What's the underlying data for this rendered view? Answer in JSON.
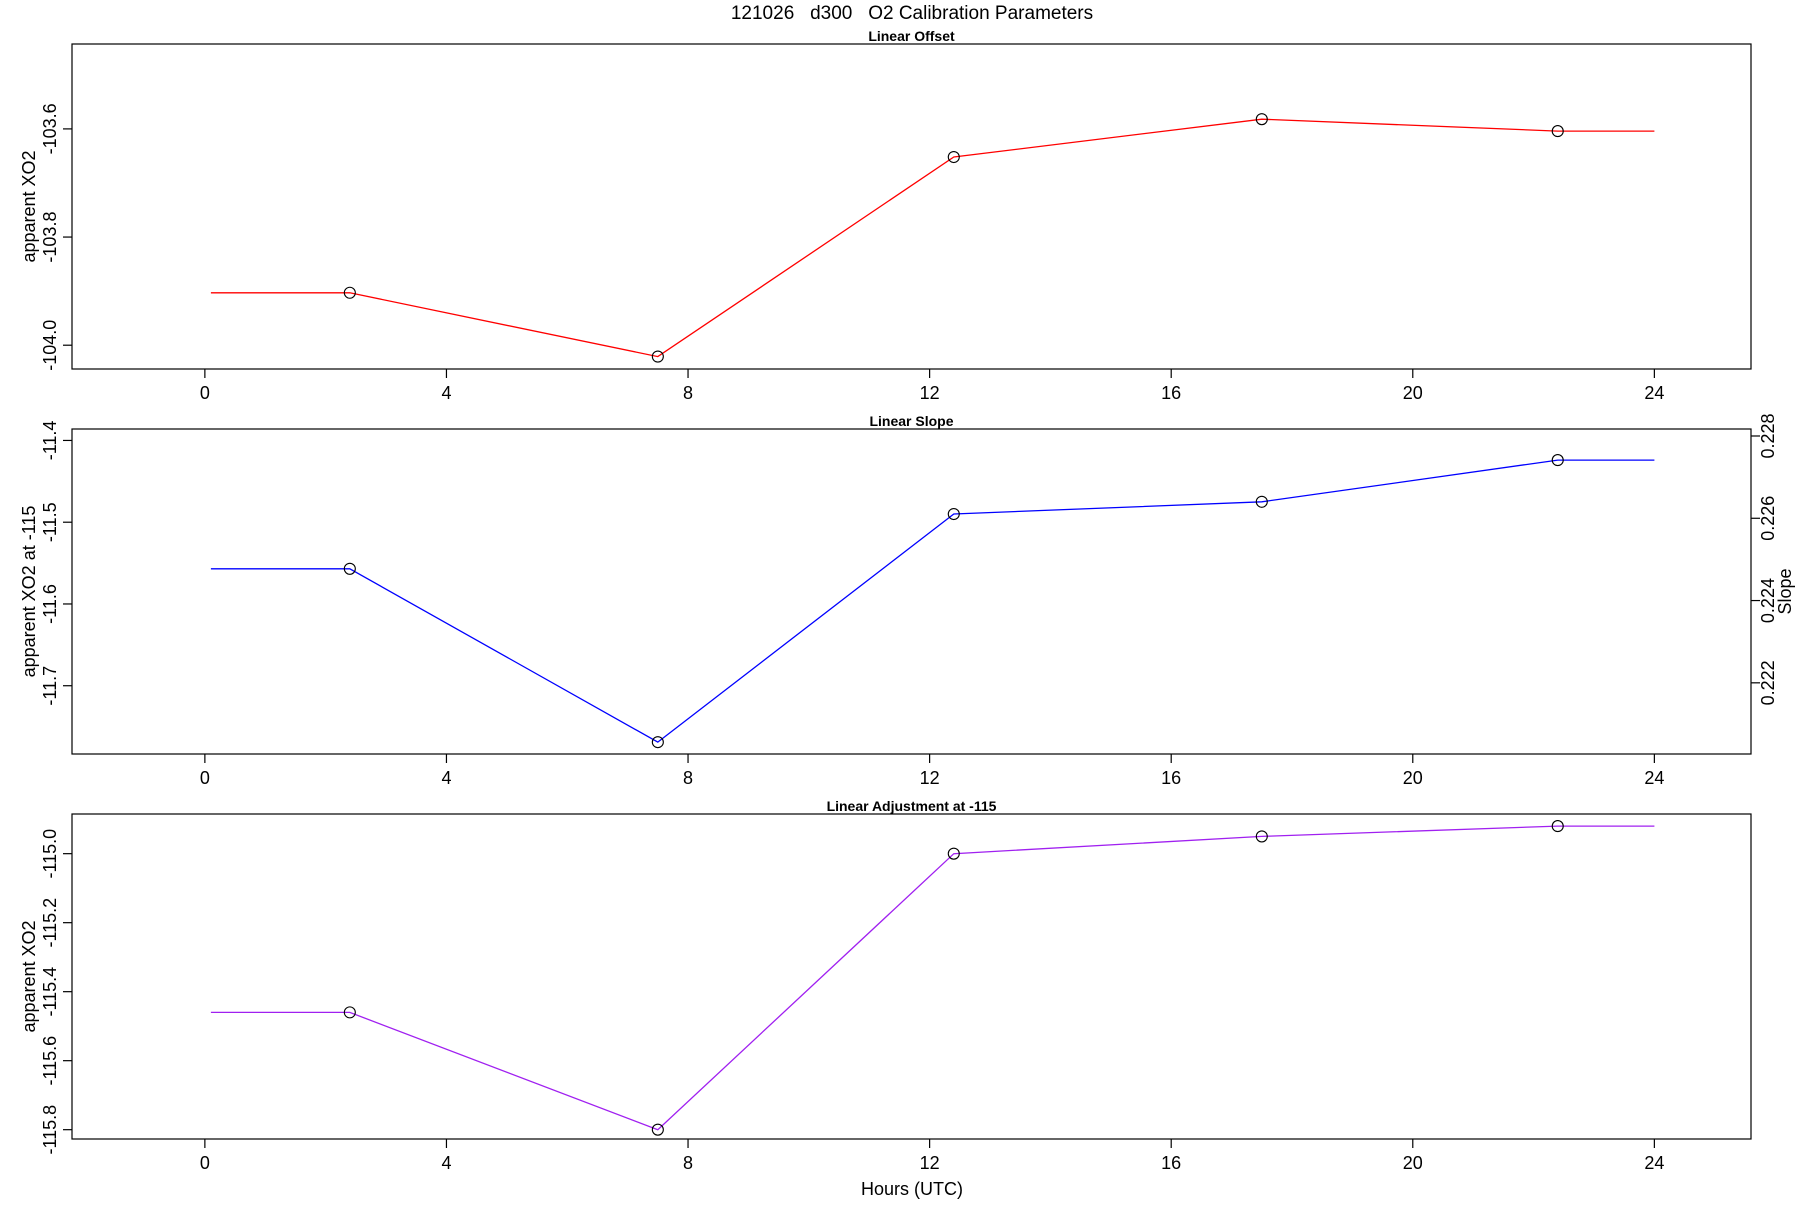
{
  "page": {
    "title": "121026   d300   O2 Calibration Parameters",
    "xlabel": "Hours (UTC)"
  },
  "chart_data": [
    {
      "type": "line",
      "title": "Linear Offset",
      "xlabel": "Hours (UTC)",
      "ylabel": "apparent XO2",
      "xlim": [
        -2.2,
        25.6
      ],
      "ylim": [
        -104.044,
        -103.443
      ],
      "x_ticks": [
        0,
        4,
        8,
        12,
        16,
        20,
        24
      ],
      "x_tick_labels": [
        "0",
        "4",
        "8",
        "12",
        "16",
        "20",
        "24"
      ],
      "y_ticks": [
        -104.0,
        -103.8,
        -103.6
      ],
      "y_tick_labels": [
        "-104.0",
        "-103.8",
        "-103.6"
      ],
      "grid": false,
      "line_color": "#ff0000",
      "line": {
        "x": [
          0.1,
          2.4,
          7.5,
          12.4,
          17.5,
          22.4,
          24.0
        ],
        "y": [
          -103.903,
          -103.903,
          -104.021,
          -103.652,
          -103.582,
          -103.604,
          -103.604
        ]
      },
      "points": {
        "x": [
          2.4,
          7.5,
          12.4,
          17.5,
          22.4
        ],
        "y": [
          -103.903,
          -104.021,
          -103.652,
          -103.582,
          -103.604
        ]
      }
    },
    {
      "type": "line",
      "title": "Linear Slope",
      "xlabel": "Hours (UTC)",
      "ylabel": "apparent XO2 at -115",
      "y2label": "Slope",
      "xlim": [
        -2.2,
        25.6
      ],
      "ylim": [
        -11.7835,
        -11.386
      ],
      "x_ticks": [
        0,
        4,
        8,
        12,
        16,
        20,
        24
      ],
      "x_tick_labels": [
        "0",
        "4",
        "8",
        "12",
        "16",
        "20",
        "24"
      ],
      "y_ticks": [
        -11.7,
        -11.6,
        -11.5,
        -11.4
      ],
      "y_tick_labels": [
        "-11.7",
        "-11.6",
        "-11.5",
        "-11.4"
      ],
      "y2lim": [
        0.22027,
        0.22817
      ],
      "y2_ticks": [
        0.222,
        0.224,
        0.226,
        0.228
      ],
      "y2_tick_labels": [
        "0.222",
        "0.224",
        "0.226",
        "0.228"
      ],
      "grid": false,
      "line_color": "#0000ff",
      "line": {
        "x": [
          0.1,
          2.4,
          7.5,
          12.4,
          17.5,
          22.4,
          24.0
        ],
        "y": [
          -11.557,
          -11.557,
          -11.769,
          -11.49,
          -11.475,
          -11.424,
          -11.424
        ]
      },
      "points": {
        "x": [
          2.4,
          7.5,
          12.4,
          17.5,
          22.4
        ],
        "y": [
          -11.557,
          -11.769,
          -11.49,
          -11.475,
          -11.424
        ]
      }
    },
    {
      "type": "line",
      "title": "Linear Adjustment at -115",
      "xlabel": "Hours (UTC)",
      "ylabel": "apparent XO2",
      "xlim": [
        -2.2,
        25.6
      ],
      "ylim": [
        -115.827,
        -114.885
      ],
      "x_ticks": [
        0,
        4,
        8,
        12,
        16,
        20,
        24
      ],
      "x_tick_labels": [
        "0",
        "4",
        "8",
        "12",
        "16",
        "20",
        "24"
      ],
      "y_ticks": [
        -115.8,
        -115.6,
        -115.4,
        -115.2,
        -115.0
      ],
      "y_tick_labels": [
        "-115.8",
        "-115.6",
        "-115.4",
        "-115.2",
        "-115.0"
      ],
      "grid": false,
      "line_color": "#a020f0",
      "line": {
        "x": [
          0.1,
          2.4,
          7.5,
          12.4,
          17.5,
          22.4,
          24.0
        ],
        "y": [
          -115.46,
          -115.46,
          -115.8,
          -115.0,
          -114.95,
          -114.92,
          -114.92
        ]
      },
      "points": {
        "x": [
          2.4,
          7.5,
          12.4,
          17.5,
          22.4
        ],
        "y": [
          -115.46,
          -115.8,
          -115.0,
          -114.95,
          -114.92
        ]
      }
    }
  ]
}
